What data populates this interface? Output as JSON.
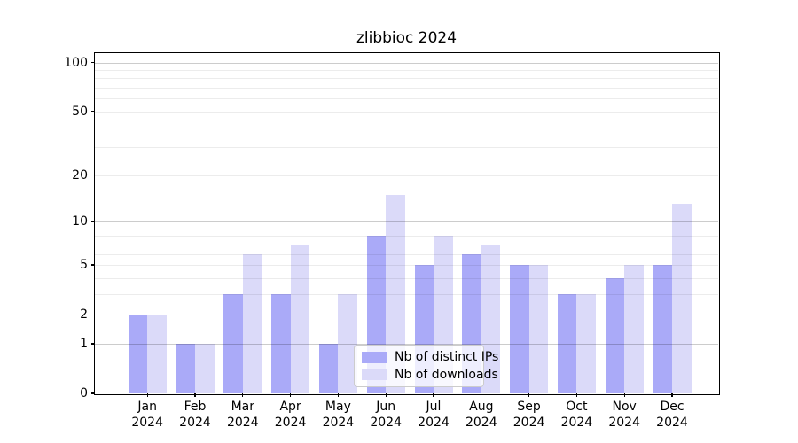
{
  "chart_data": {
    "type": "bar",
    "title": "zlibbioc 2024",
    "categories": [
      "Jan",
      "Feb",
      "Mar",
      "Apr",
      "May",
      "Jun",
      "Jul",
      "Aug",
      "Sep",
      "Oct",
      "Nov",
      "Dec"
    ],
    "x_tick_second_line": "2024",
    "series": [
      {
        "name": "Nb of distinct IPs",
        "color": "#aaaaf8",
        "values": [
          2,
          1,
          3,
          3,
          1,
          8,
          5,
          6,
          5,
          3,
          4,
          5
        ]
      },
      {
        "name": "Nb of downloads",
        "color": "#dbdaf9",
        "values": [
          2,
          1,
          6,
          7,
          3,
          15,
          8,
          7,
          5,
          3,
          5,
          13
        ]
      }
    ],
    "xlabel": "",
    "ylabel": "",
    "y_axis": {
      "scale": "log10(1+v)",
      "ticks": [
        0,
        1,
        2,
        5,
        10,
        20,
        50,
        100
      ],
      "tick_labels": [
        "0",
        "1",
        "2",
        "5",
        "10",
        "20",
        "50",
        "100"
      ],
      "ylim": [
        0,
        114
      ],
      "major_gridlines": [
        1,
        10,
        100
      ],
      "minor_gridlines": [
        2,
        3,
        4,
        5,
        6,
        7,
        8,
        9,
        20,
        30,
        40,
        50,
        60,
        70,
        80,
        90
      ]
    },
    "legend": {
      "position": "lower-center"
    },
    "grid": {
      "on": true,
      "major_color": "#c6c6c6",
      "minor_color": "#ebebeb"
    },
    "axis_color": "#000000",
    "background_color": "#ffffff"
  }
}
